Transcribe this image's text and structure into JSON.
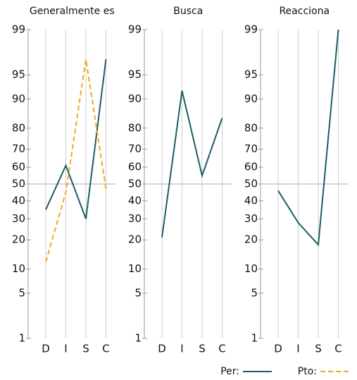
{
  "chart_data": [
    {
      "type": "line",
      "title": "Generalmente es",
      "categories": [
        "D",
        "I",
        "S",
        "C"
      ],
      "series": [
        {
          "name": "Per:",
          "color": "#1b5e66",
          "values": [
            35,
            61,
            30,
            97
          ]
        },
        {
          "name": "Pto:",
          "color": "#f5a623",
          "dashed": true,
          "values": [
            12,
            45,
            97,
            47
          ]
        }
      ],
      "ylim": [
        1,
        99
      ],
      "yticks": [
        1,
        5,
        10,
        20,
        30,
        40,
        50,
        60,
        70,
        80,
        90,
        95,
        99
      ],
      "scale": "probit",
      "reference_line": 50,
      "grid": true
    },
    {
      "type": "line",
      "title": "Busca",
      "categories": [
        "D",
        "I",
        "S",
        "C"
      ],
      "series": [
        {
          "name": "Per:",
          "color": "#1b5e66",
          "values": [
            21,
            92,
            55,
            84
          ]
        }
      ],
      "ylim": [
        1,
        99
      ],
      "yticks": [
        1,
        5,
        10,
        20,
        30,
        40,
        50,
        60,
        70,
        80,
        90,
        95,
        99
      ],
      "scale": "probit",
      "reference_line": 50,
      "grid": true
    },
    {
      "type": "line",
      "title": "Reacciona",
      "categories": [
        "D",
        "I",
        "S",
        "C"
      ],
      "series": [
        {
          "name": "Per:",
          "color": "#1b5e66",
          "values": [
            46,
            28,
            18,
            99
          ]
        }
      ],
      "ylim": [
        1,
        99
      ],
      "yticks": [
        1,
        5,
        10,
        20,
        30,
        40,
        50,
        60,
        70,
        80,
        90,
        95,
        99
      ],
      "scale": "probit",
      "reference_line": 50,
      "grid": true
    }
  ]
}
